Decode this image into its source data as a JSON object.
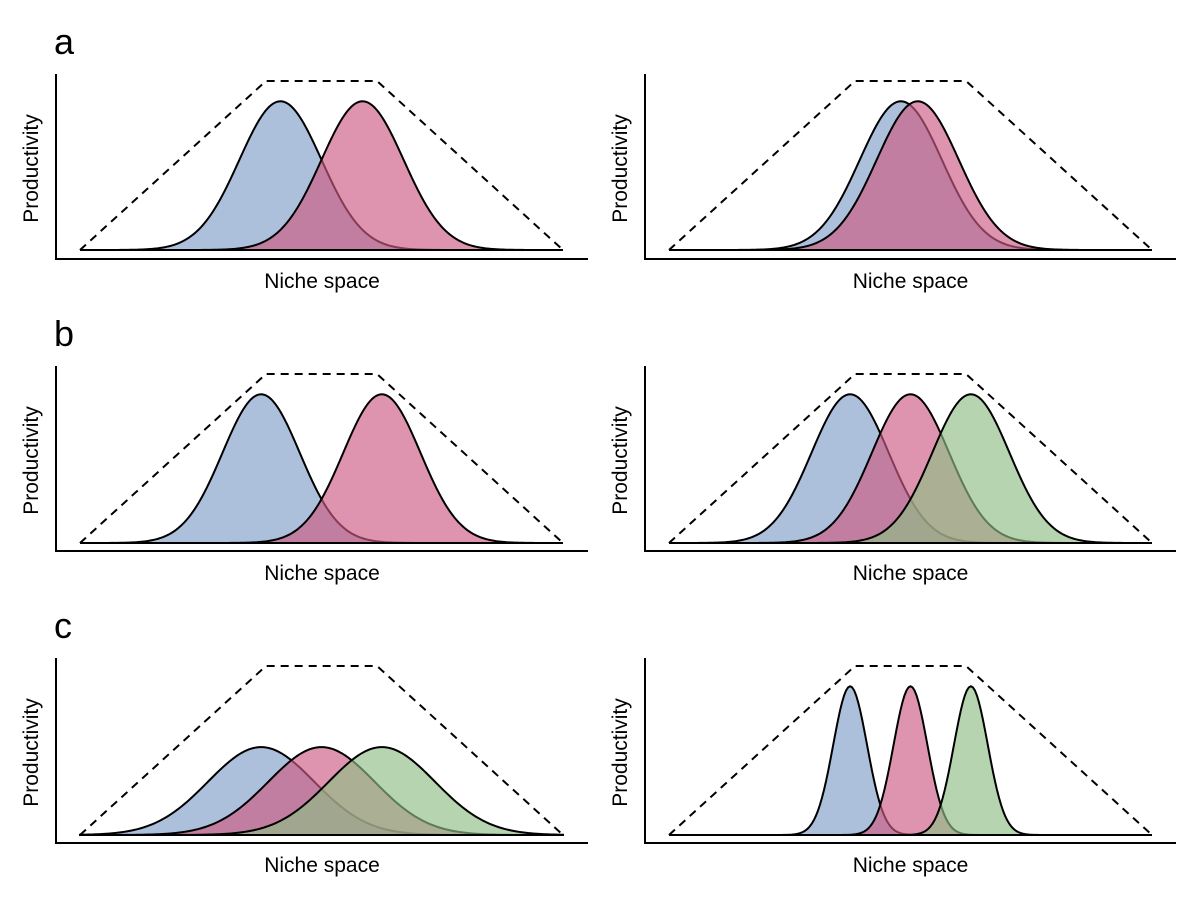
{
  "colors": {
    "blue": "#7f9ec8",
    "pink": "#cc5a82",
    "green": "#8fbd84",
    "fill_opacity": 0.65,
    "stroke": "#000000"
  },
  "rows": [
    {
      "label": "a",
      "panels": [
        {
          "xlabel": "Niche space",
          "ylabel": "Productivity",
          "envelope": {
            "start": 0,
            "plateau_start": 0.385,
            "plateau_end": 0.615,
            "end": 1,
            "height": 1.0
          },
          "species": [
            {
              "color": "blue",
              "mu": 0.415,
              "sigma": 0.085,
              "height": 0.88
            },
            {
              "color": "pink",
              "mu": 0.585,
              "sigma": 0.085,
              "height": 0.88
            }
          ]
        },
        {
          "xlabel": "Niche space",
          "ylabel": "Productivity",
          "envelope": {
            "start": 0,
            "plateau_start": 0.385,
            "plateau_end": 0.615,
            "end": 1,
            "height": 1.0
          },
          "species": [
            {
              "color": "blue",
              "mu": 0.48,
              "sigma": 0.085,
              "height": 0.88
            },
            {
              "color": "pink",
              "mu": 0.515,
              "sigma": 0.085,
              "height": 0.88
            }
          ]
        }
      ]
    },
    {
      "label": "b",
      "panels": [
        {
          "xlabel": "Niche space",
          "ylabel": "Productivity",
          "envelope": {
            "start": 0,
            "plateau_start": 0.385,
            "plateau_end": 0.615,
            "end": 1,
            "height": 1.0
          },
          "species": [
            {
              "color": "blue",
              "mu": 0.375,
              "sigma": 0.08,
              "height": 0.88
            },
            {
              "color": "pink",
              "mu": 0.625,
              "sigma": 0.08,
              "height": 0.88
            }
          ]
        },
        {
          "xlabel": "Niche space",
          "ylabel": "Productivity",
          "envelope": {
            "start": 0,
            "plateau_start": 0.385,
            "plateau_end": 0.615,
            "end": 1,
            "height": 1.0
          },
          "species": [
            {
              "color": "blue",
              "mu": 0.375,
              "sigma": 0.08,
              "height": 0.88
            },
            {
              "color": "pink",
              "mu": 0.5,
              "sigma": 0.08,
              "height": 0.88
            },
            {
              "color": "green",
              "mu": 0.625,
              "sigma": 0.08,
              "height": 0.88
            }
          ]
        }
      ]
    },
    {
      "label": "c",
      "panels": [
        {
          "xlabel": "Niche space",
          "ylabel": "Productivity",
          "envelope": {
            "start": 0,
            "plateau_start": 0.385,
            "plateau_end": 0.615,
            "end": 1,
            "height": 1.0
          },
          "species": [
            {
              "color": "blue",
              "mu": 0.375,
              "sigma": 0.11,
              "height": 0.52
            },
            {
              "color": "pink",
              "mu": 0.5,
              "sigma": 0.11,
              "height": 0.52
            },
            {
              "color": "green",
              "mu": 0.625,
              "sigma": 0.11,
              "height": 0.52
            }
          ]
        },
        {
          "xlabel": "Niche space",
          "ylabel": "Productivity",
          "envelope": {
            "start": 0,
            "plateau_start": 0.385,
            "plateau_end": 0.615,
            "end": 1,
            "height": 1.0
          },
          "species": [
            {
              "color": "blue",
              "mu": 0.375,
              "sigma": 0.035,
              "height": 0.88
            },
            {
              "color": "pink",
              "mu": 0.5,
              "sigma": 0.035,
              "height": 0.88
            },
            {
              "color": "green",
              "mu": 0.625,
              "sigma": 0.035,
              "height": 0.88
            }
          ]
        }
      ]
    }
  ]
}
